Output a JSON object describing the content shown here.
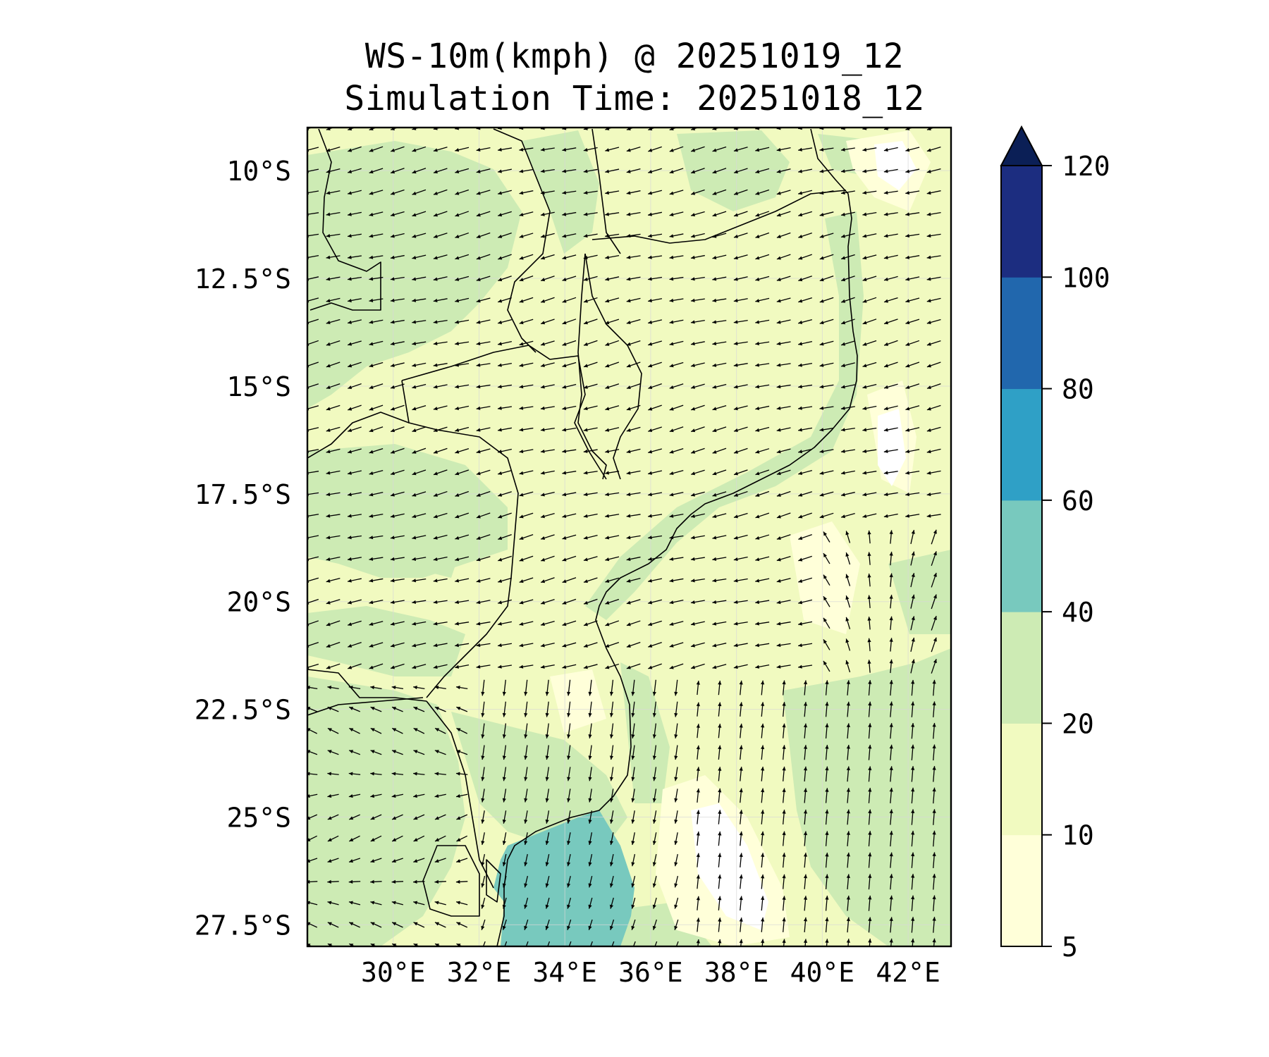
{
  "title": {
    "line1": "WS-10m(kmph) @ 20251019_12",
    "line2": "Simulation Time: 20251018_12"
  },
  "map": {
    "lon_range": [
      28.0,
      43.0
    ],
    "lat_range": [
      -28.0,
      -9.0
    ],
    "lat_ticks": [
      {
        "value": -10.0,
        "label": "10°S"
      },
      {
        "value": -12.5,
        "label": "12.5°S"
      },
      {
        "value": -15.0,
        "label": "15°S"
      },
      {
        "value": -17.5,
        "label": "17.5°S"
      },
      {
        "value": -20.0,
        "label": "20°S"
      },
      {
        "value": -22.5,
        "label": "22.5°S"
      },
      {
        "value": -25.0,
        "label": "25°S"
      },
      {
        "value": -27.5,
        "label": "27.5°S"
      }
    ],
    "lon_ticks": [
      {
        "value": 30,
        "label": "30°E"
      },
      {
        "value": 32,
        "label": "32°E"
      },
      {
        "value": 34,
        "label": "34°E"
      },
      {
        "value": 36,
        "label": "36°E"
      },
      {
        "value": 38,
        "label": "38°E"
      },
      {
        "value": 40,
        "label": "40°E"
      },
      {
        "value": 42,
        "label": "42°E"
      }
    ],
    "gridlines": true
  },
  "colorbar": {
    "levels": [
      5,
      10,
      20,
      40,
      60,
      80,
      100,
      120
    ],
    "labels": [
      "5",
      "10",
      "20",
      "40",
      "60",
      "80",
      "100",
      "120"
    ],
    "colors": [
      "#ffffd9",
      "#f1fac0",
      "#cdebb4",
      "#78c9be",
      "#2fa0c6",
      "#2167ad",
      "#1c2d80"
    ],
    "extend_color": "#0b1f56"
  }
}
